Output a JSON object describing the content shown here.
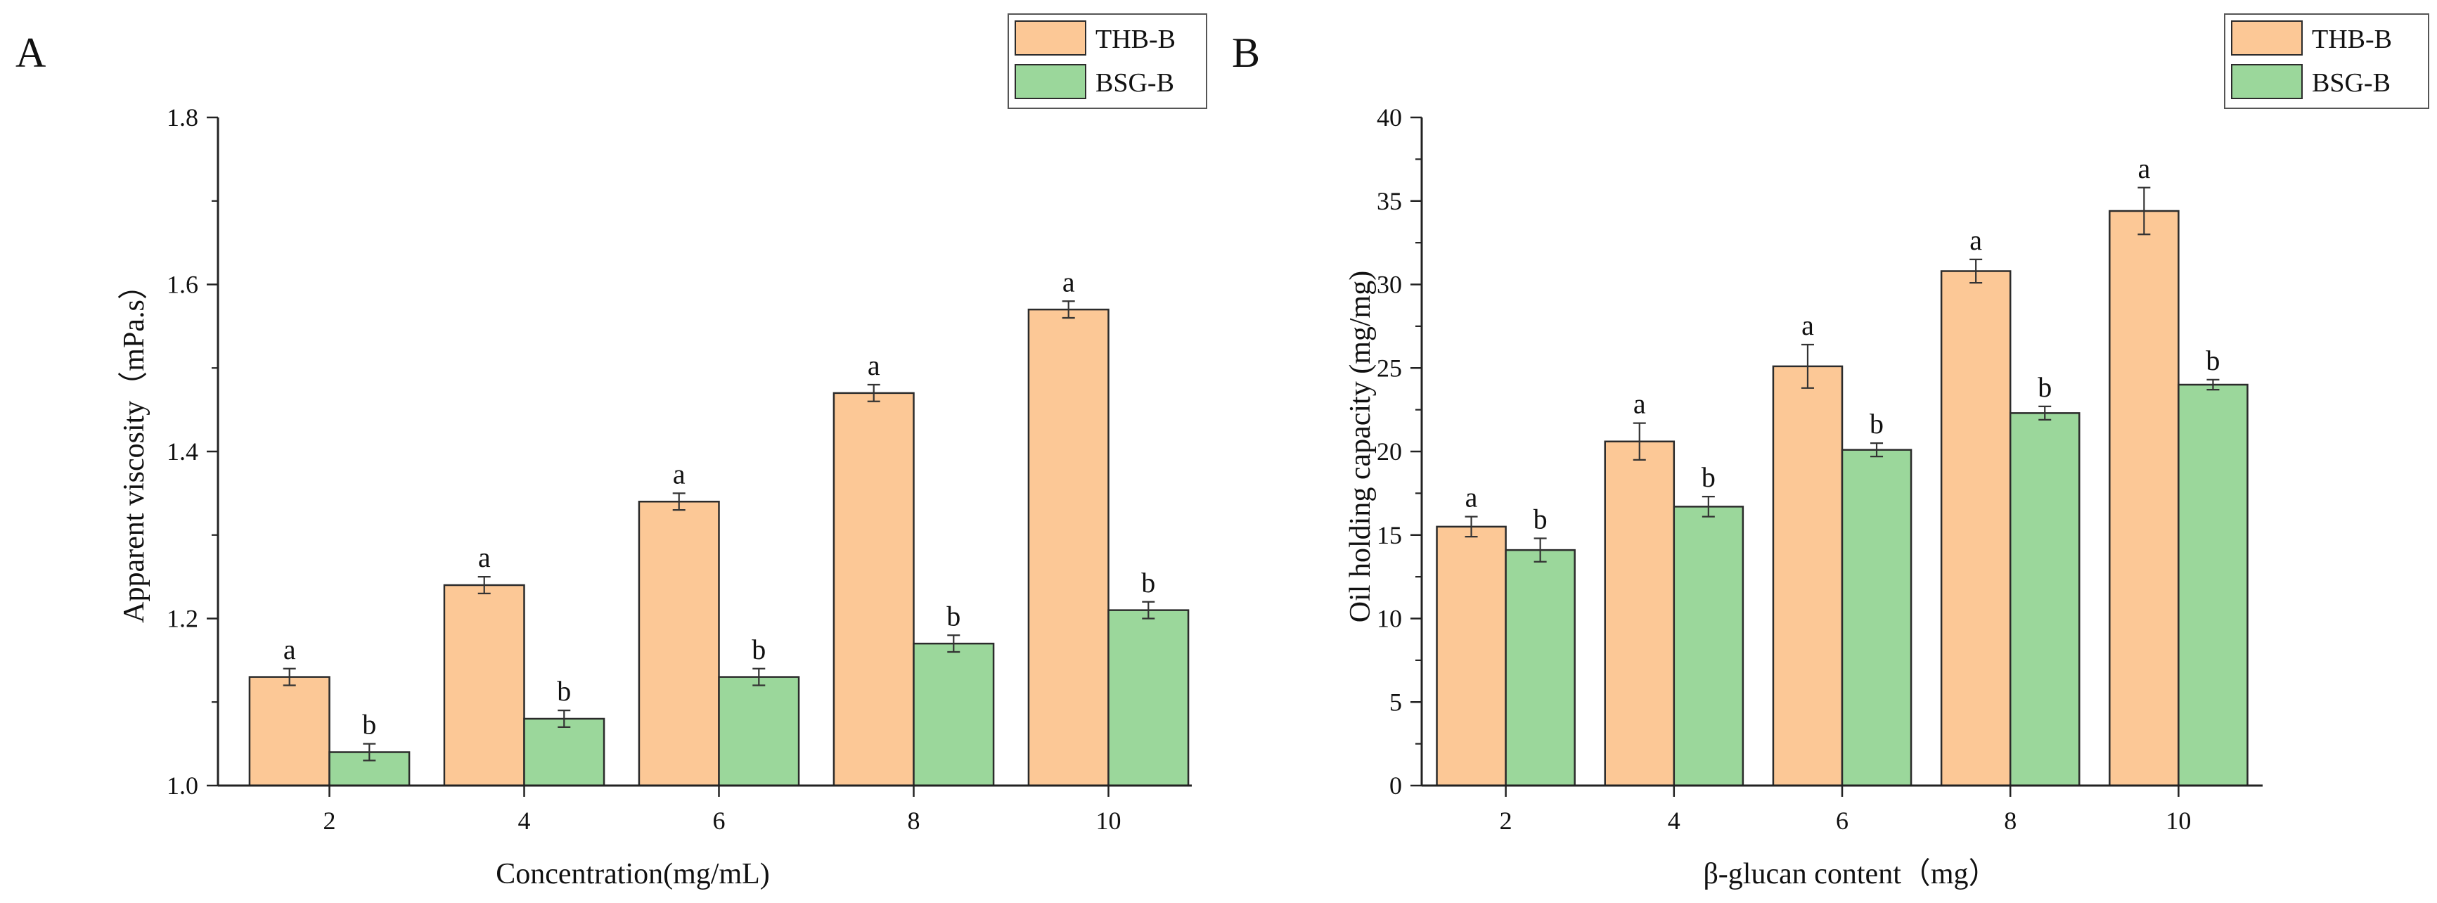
{
  "chart_data": [
    {
      "panel": "A",
      "type": "bar",
      "categories": [
        "2",
        "4",
        "6",
        "8",
        "10"
      ],
      "series": [
        {
          "name": "THB-B",
          "values": [
            1.13,
            1.24,
            1.34,
            1.47,
            1.57
          ],
          "errors": [
            0.01,
            0.01,
            0.01,
            0.01,
            0.01
          ],
          "labels": [
            "a",
            "a",
            "a",
            "a",
            "a"
          ],
          "color": "#FCC896"
        },
        {
          "name": "BSG-B",
          "values": [
            1.04,
            1.08,
            1.13,
            1.17,
            1.21
          ],
          "errors": [
            0.01,
            0.01,
            0.01,
            0.01,
            0.01
          ],
          "labels": [
            "b",
            "b",
            "b",
            "b",
            "b"
          ],
          "color": "#9BD79B"
        }
      ],
      "xlabel": "Concentration(mg/mL)",
      "ylabel": "Apparent viscosity（mPa.s）",
      "ylim": [
        1.0,
        1.8
      ],
      "yticks": [
        "1.0",
        "1.2",
        "1.4",
        "1.6",
        "1.8"
      ],
      "legend": "top-right",
      "grid": false
    },
    {
      "panel": "B",
      "type": "bar",
      "categories": [
        "2",
        "4",
        "6",
        "8",
        "10"
      ],
      "series": [
        {
          "name": "THB-B",
          "values": [
            15.5,
            20.6,
            25.1,
            30.8,
            34.4
          ],
          "errors": [
            0.6,
            1.1,
            1.3,
            0.7,
            1.4
          ],
          "labels": [
            "a",
            "a",
            "a",
            "a",
            "a"
          ],
          "color": "#FCC896"
        },
        {
          "name": "BSG-B",
          "values": [
            14.1,
            16.7,
            20.1,
            22.3,
            24.0
          ],
          "errors": [
            0.7,
            0.6,
            0.4,
            0.4,
            0.3
          ],
          "labels": [
            "b",
            "b",
            "b",
            "b",
            "b"
          ],
          "color": "#9BD79B"
        }
      ],
      "xlabel": "β-glucan content（mg）",
      "ylabel": "Oil holding capacity (mg/mg)",
      "ylim": [
        0,
        40
      ],
      "yticks": [
        "0",
        "5",
        "10",
        "15",
        "20",
        "25",
        "30",
        "35",
        "40"
      ],
      "legend": "top-right",
      "grid": false
    }
  ]
}
